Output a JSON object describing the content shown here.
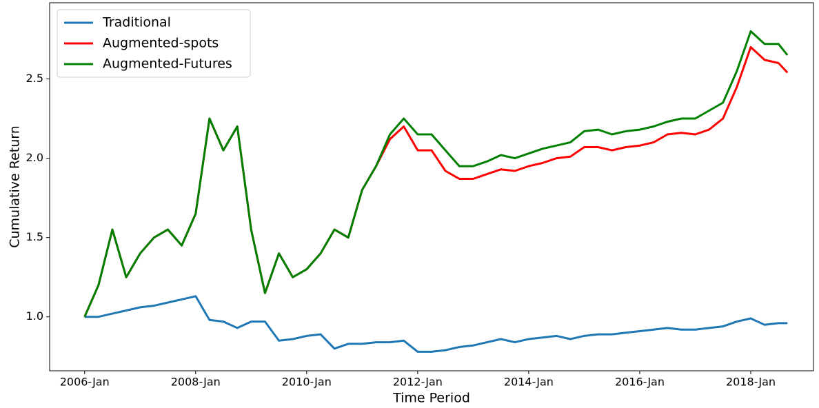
{
  "chart_data": {
    "type": "line",
    "xlabel": "Time Period",
    "ylabel": "Cumulative Return",
    "x": [
      2006,
      2006.25,
      2006.5,
      2006.75,
      2007,
      2007.25,
      2007.5,
      2007.75,
      2008,
      2008.25,
      2008.5,
      2008.75,
      2009,
      2009.25,
      2009.5,
      2009.75,
      2010,
      2010.25,
      2010.5,
      2010.75,
      2011,
      2011.25,
      2011.5,
      2011.75,
      2012,
      2012.25,
      2012.5,
      2012.75,
      2013,
      2013.25,
      2013.5,
      2013.75,
      2014,
      2014.25,
      2014.5,
      2014.75,
      2015,
      2015.25,
      2015.5,
      2015.75,
      2016,
      2016.25,
      2016.5,
      2016.75,
      2017,
      2017.25,
      2017.5,
      2017.75,
      2018,
      2018.25,
      2018.5,
      2018.66
    ],
    "series": [
      {
        "name": "Traditional",
        "color": "#1f77b4",
        "values": [
          1.0,
          1.0,
          1.02,
          1.04,
          1.06,
          1.07,
          1.09,
          1.11,
          1.13,
          0.98,
          0.97,
          0.93,
          0.97,
          0.97,
          0.85,
          0.86,
          0.88,
          0.89,
          0.8,
          0.83,
          0.83,
          0.84,
          0.84,
          0.85,
          0.78,
          0.78,
          0.79,
          0.81,
          0.82,
          0.84,
          0.86,
          0.84,
          0.86,
          0.87,
          0.88,
          0.86,
          0.88,
          0.89,
          0.89,
          0.9,
          0.91,
          0.92,
          0.93,
          0.92,
          0.92,
          0.93,
          0.94,
          0.97,
          0.99,
          0.95,
          0.96,
          0.96
        ]
      },
      {
        "name": "Augmented-spots",
        "color": "#ff0000",
        "values": [
          1.0,
          1.2,
          1.55,
          1.25,
          1.4,
          1.5,
          1.55,
          1.45,
          1.65,
          2.25,
          2.05,
          2.2,
          1.55,
          1.15,
          1.4,
          1.25,
          1.3,
          1.4,
          1.55,
          1.5,
          1.8,
          1.95,
          2.12,
          2.2,
          2.05,
          2.05,
          1.92,
          1.87,
          1.87,
          1.9,
          1.93,
          1.92,
          1.95,
          1.97,
          2.0,
          2.01,
          2.07,
          2.07,
          2.05,
          2.07,
          2.08,
          2.1,
          2.15,
          2.16,
          2.15,
          2.18,
          2.25,
          2.45,
          2.7,
          2.62,
          2.6,
          2.54
        ]
      },
      {
        "name": "Augmented-Futures",
        "color": "#008000",
        "values": [
          1.0,
          1.2,
          1.55,
          1.25,
          1.4,
          1.5,
          1.55,
          1.45,
          1.65,
          2.25,
          2.05,
          2.2,
          1.55,
          1.15,
          1.4,
          1.25,
          1.3,
          1.4,
          1.55,
          1.5,
          1.8,
          1.95,
          2.15,
          2.25,
          2.15,
          2.15,
          2.05,
          1.95,
          1.95,
          1.98,
          2.02,
          2.0,
          2.03,
          2.06,
          2.08,
          2.1,
          2.17,
          2.18,
          2.15,
          2.17,
          2.18,
          2.2,
          2.23,
          2.25,
          2.25,
          2.3,
          2.35,
          2.55,
          2.8,
          2.72,
          2.72,
          2.65
        ]
      }
    ],
    "xlim": [
      2005.37,
      2019.13
    ],
    "xticks": [
      {
        "value": 2006,
        "label": "2006-Jan"
      },
      {
        "value": 2008,
        "label": "2008-Jan"
      },
      {
        "value": 2010,
        "label": "2010-Jan"
      },
      {
        "value": 2012,
        "label": "2012-Jan"
      },
      {
        "value": 2014,
        "label": "2014-Jan"
      },
      {
        "value": 2016,
        "label": "2016-Jan"
      },
      {
        "value": 2018,
        "label": "2018-Jan"
      }
    ],
    "ylim": [
      0.66,
      2.98
    ],
    "yticks": [
      {
        "value": 1,
        "label": "1.0"
      },
      1.5,
      {
        "value": 2,
        "label": "2.0"
      },
      2.5
    ],
    "legend": "upper left"
  }
}
